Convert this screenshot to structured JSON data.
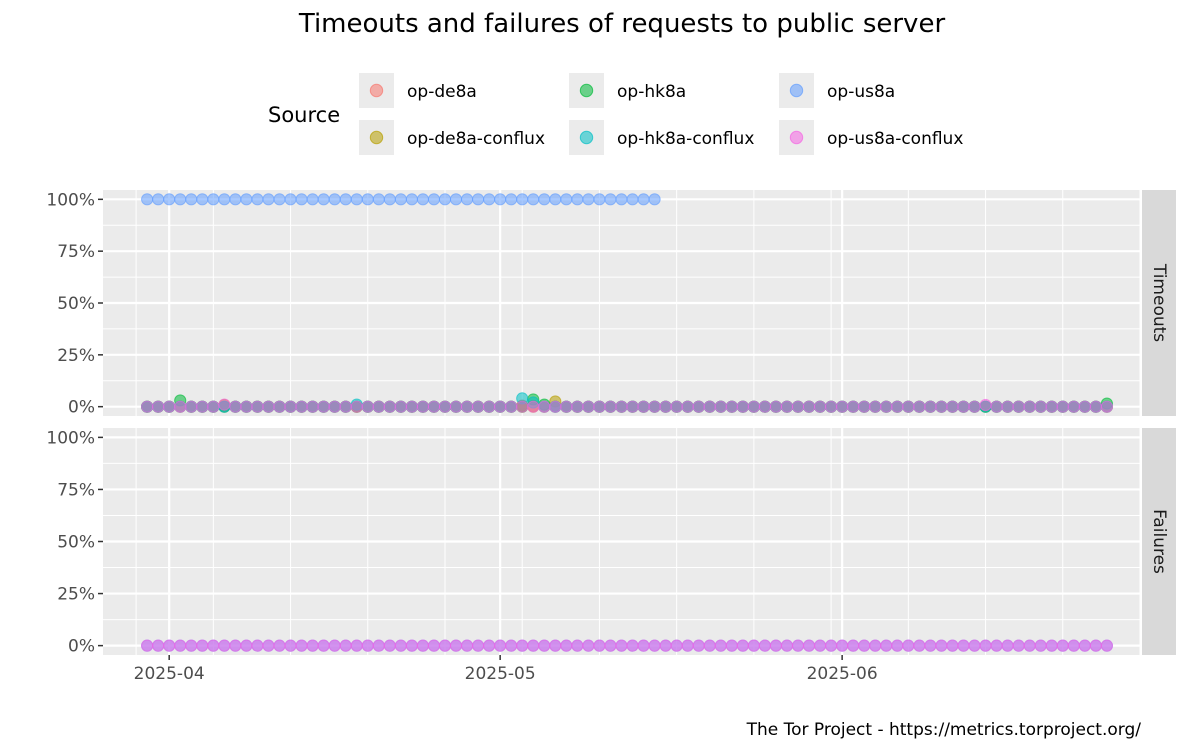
{
  "chart_data": {
    "type": "scatter",
    "title": "Timeouts and failures of requests to public server",
    "caption": "The Tor Project - https://metrics.torproject.org/",
    "legend": {
      "title": "Source",
      "placement": "top",
      "entries": [
        {
          "name": "op-de8a",
          "color": "#F8766D"
        },
        {
          "name": "op-de8a-conflux",
          "color": "#B79F00"
        },
        {
          "name": "op-hk8a",
          "color": "#00BA38"
        },
        {
          "name": "op-hk8a-conflux",
          "color": "#00BFC4"
        },
        {
          "name": "op-us8a",
          "color": "#619CFF"
        },
        {
          "name": "op-us8a-conflux",
          "color": "#F564E3"
        }
      ]
    },
    "x_axis": {
      "type": "date",
      "range": [
        "2025-03-26",
        "2025-06-28"
      ],
      "ticks": [
        {
          "date": "2025-04-01",
          "label": "2025-04"
        },
        {
          "date": "2025-05-01",
          "label": "2025-05"
        },
        {
          "date": "2025-06-01",
          "label": "2025-06"
        }
      ]
    },
    "y_axis": {
      "range": [
        -0.045,
        1.045
      ],
      "ticks": [
        {
          "value": 0,
          "label": "0%"
        },
        {
          "value": 0.25,
          "label": "25%"
        },
        {
          "value": 0.5,
          "label": "50%"
        },
        {
          "value": 0.75,
          "label": "75%"
        },
        {
          "value": 1,
          "label": "100%"
        }
      ]
    },
    "facets": [
      {
        "name": "Timeouts",
        "strip_label": "Timeouts"
      },
      {
        "name": "Failures",
        "strip_label": "Failures"
      }
    ],
    "series": [
      {
        "name": "op-de8a",
        "color": "#F8766D",
        "facet": "Timeouts",
        "x_range": [
          "2025-03-30",
          "2025-06-25"
        ],
        "value": 0,
        "spikes": [
          {
            "x": "2025-05-03",
            "y": 0.005
          },
          {
            "x": "2025-05-04",
            "y": 0.002
          }
        ]
      },
      {
        "name": "op-de8a-conflux",
        "color": "#B79F00",
        "facet": "Timeouts",
        "x_range": [
          "2025-03-30",
          "2025-06-25"
        ],
        "value": 0,
        "spikes": [
          {
            "x": "2025-05-06",
            "y": 0.025
          },
          {
            "x": "2025-04-06",
            "y": 0.008
          }
        ]
      },
      {
        "name": "op-hk8a",
        "color": "#00BA38",
        "facet": "Timeouts",
        "x_range": [
          "2025-03-30",
          "2025-06-25"
        ],
        "value": 0,
        "spikes": [
          {
            "x": "2025-04-02",
            "y": 0.03
          },
          {
            "x": "2025-05-04",
            "y": 0.035
          },
          {
            "x": "2025-05-05",
            "y": 0.01
          },
          {
            "x": "2025-06-25",
            "y": 0.015
          }
        ]
      },
      {
        "name": "op-hk8a-conflux",
        "color": "#00BFC4",
        "facet": "Timeouts",
        "x_range": [
          "2025-03-30",
          "2025-06-25"
        ],
        "value": 0,
        "spikes": [
          {
            "x": "2025-05-03",
            "y": 0.04
          },
          {
            "x": "2025-05-04",
            "y": 0.02
          },
          {
            "x": "2025-04-18",
            "y": 0.01
          }
        ]
      },
      {
        "name": "op-us8a",
        "color": "#619CFF",
        "facet": "Timeouts",
        "x_range": [
          "2025-03-30",
          "2025-05-15"
        ],
        "value": 1,
        "spikes": []
      },
      {
        "name": "op-us8a-conflux",
        "color": "#F564E3",
        "facet": "Timeouts",
        "x_range": [
          "2025-03-30",
          "2025-06-25"
        ],
        "value": 0,
        "spikes": [
          {
            "x": "2025-04-06",
            "y": 0.01
          },
          {
            "x": "2025-06-14",
            "y": 0.008
          }
        ]
      },
      {
        "name": "op-us8a",
        "color": "#619CFF",
        "facet": "Failures",
        "x_range": [
          "2025-03-30",
          "2025-06-25"
        ],
        "value": 0,
        "spikes": []
      },
      {
        "name": "op-us8a-conflux",
        "color": "#F564E3",
        "facet": "Failures",
        "x_range": [
          "2025-03-30",
          "2025-06-25"
        ],
        "value": 0,
        "spikes": []
      }
    ]
  }
}
